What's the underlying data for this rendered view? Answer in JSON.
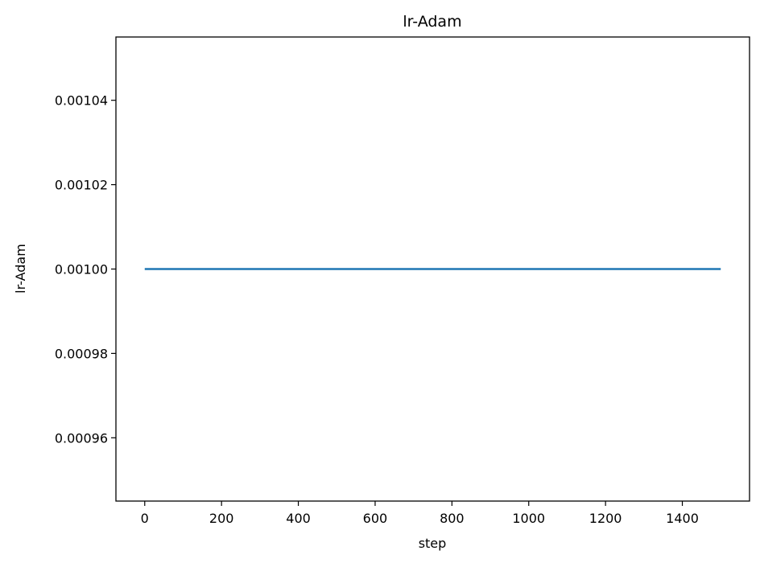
{
  "chart_data": {
    "type": "line",
    "title": "lr-Adam",
    "xlabel": "step",
    "ylabel": "lr-Adam",
    "xlim": [
      -75,
      1575
    ],
    "ylim": [
      0.000945,
      0.001055
    ],
    "x_ticks": [
      0,
      200,
      400,
      600,
      800,
      1000,
      1200,
      1400
    ],
    "x_tick_labels": [
      "0",
      "200",
      "400",
      "600",
      "800",
      "1000",
      "1200",
      "1400"
    ],
    "y_ticks": [
      0.00096,
      0.00098,
      0.001,
      0.00102,
      0.00104
    ],
    "y_tick_labels": [
      "0.00096",
      "0.00098",
      "0.00100",
      "0.00102",
      "0.00104"
    ],
    "grid": false,
    "series": [
      {
        "name": "lr-Adam",
        "color": "#1f77b4",
        "x": [
          0,
          1500
        ],
        "y": [
          0.001,
          0.001
        ]
      }
    ]
  }
}
